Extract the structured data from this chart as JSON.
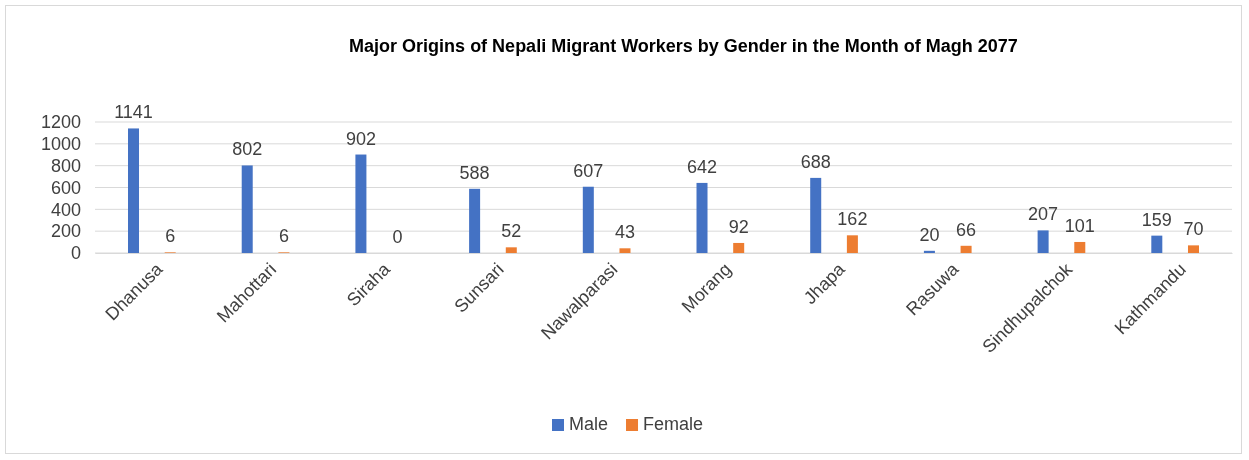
{
  "chart_data": {
    "type": "bar",
    "title": "Major Origins of Nepali Migrant Workers by Gender in the Month of Magh 2077",
    "categories": [
      "Dhanusa",
      "Mahottari",
      "Siraha",
      "Sunsari",
      "Nawalparasi",
      "Morang",
      "Jhapa",
      "Rasuwa",
      "Sindhupalchok",
      "Kathmandu"
    ],
    "series": [
      {
        "name": "Male",
        "color": "#4472c4",
        "values": [
          1141,
          802,
          902,
          588,
          607,
          642,
          688,
          20,
          207,
          159
        ]
      },
      {
        "name": "Female",
        "color": "#ed7d31",
        "values": [
          6,
          6,
          0,
          52,
          43,
          92,
          162,
          66,
          101,
          70
        ]
      }
    ],
    "ylim": [
      0,
      1200
    ],
    "yticks": [
      0,
      200,
      400,
      600,
      800,
      1000,
      1200
    ],
    "grid": "y",
    "legend": "bottom",
    "data_labels": true
  }
}
